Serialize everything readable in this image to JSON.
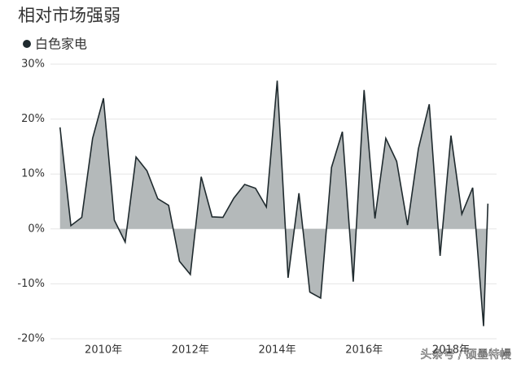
{
  "chart_data": {
    "type": "area",
    "title": "相对市场强弱",
    "x": [
      2009,
      2009.25,
      2009.5,
      2009.75,
      2010,
      2010.25,
      2010.5,
      2010.75,
      2011,
      2011.25,
      2011.5,
      2011.75,
      2012,
      2012.25,
      2012.5,
      2012.75,
      2013,
      2013.25,
      2013.5,
      2013.75,
      2014,
      2014.25,
      2014.5,
      2014.75,
      2015,
      2015.25,
      2015.5,
      2015.75,
      2016,
      2016.25,
      2016.5,
      2016.75,
      2017,
      2017.25,
      2017.5,
      2017.75,
      2018,
      2018.25,
      2018.5,
      2018.75,
      2018.85
    ],
    "series": [
      {
        "name": "白色家电",
        "color": "#b4b9ba",
        "line_color": "#1f2a2e",
        "values": [
          18.5,
          0.6,
          2.1,
          16.5,
          23.8,
          1.6,
          -2.4,
          13.1,
          10.6,
          5.5,
          4.3,
          -5.9,
          -8.3,
          9.5,
          2.2,
          2.1,
          5.6,
          8.1,
          7.4,
          4.0,
          27.0,
          -8.9,
          6.5,
          -11.5,
          -12.6,
          11.2,
          17.7,
          -9.6,
          25.3,
          1.9,
          16.5,
          12.3,
          0.7,
          14.6,
          22.7,
          -4.9,
          17.0,
          2.7,
          7.5,
          -17.7,
          4.6
        ]
      }
    ],
    "xlim": [
      2008.78,
      2019.05
    ],
    "xticks": [
      {
        "value": 2010,
        "label": "2010年"
      },
      {
        "value": 2012,
        "label": "2012年"
      },
      {
        "value": 2014,
        "label": "2014年"
      },
      {
        "value": 2016,
        "label": "2016年"
      },
      {
        "value": 2018,
        "label": "2018年"
      }
    ],
    "ylim": [
      -20,
      30
    ],
    "yticks": [
      {
        "value": -20,
        "label": "-20%"
      },
      {
        "value": -10,
        "label": "-10%"
      },
      {
        "value": 0,
        "label": "0%"
      },
      {
        "value": 10,
        "label": "10%"
      },
      {
        "value": 20,
        "label": "20%"
      },
      {
        "value": 30,
        "label": "30%"
      }
    ],
    "grid": true,
    "watermark": "头条号 / 硕墨特幔"
  }
}
